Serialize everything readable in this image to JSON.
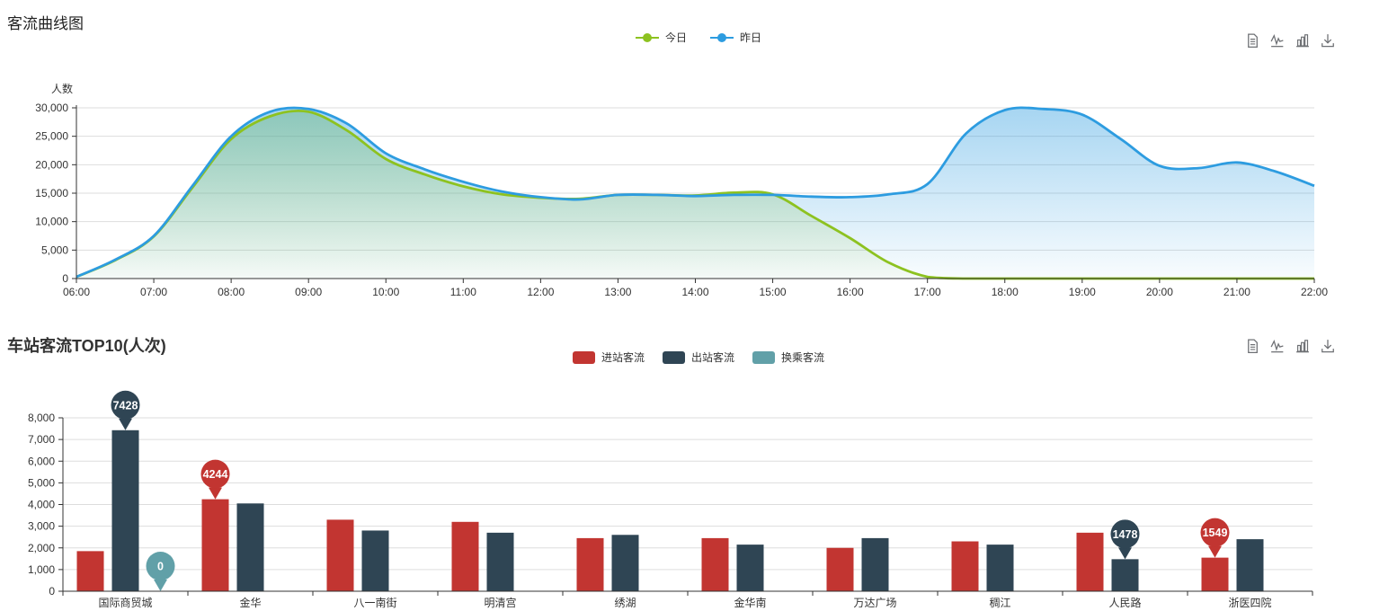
{
  "palette": {
    "red": "#c23531",
    "dark_navy": "#2f4554",
    "teal": "#61a0a8",
    "green": "#8dc220",
    "blue": "#2d9ce0",
    "axis": "#333333",
    "grid": "#dddddd",
    "icon": "#6e7074"
  },
  "toolbox": {
    "icons": [
      {
        "name": "data-view"
      },
      {
        "name": "line-chart"
      },
      {
        "name": "bar-chart"
      },
      {
        "name": "download"
      }
    ]
  },
  "chart_data": [
    {
      "type": "area",
      "title": "客流曲线图",
      "ylabel": "人数",
      "xlabel": "",
      "ylim": [
        0,
        30000
      ],
      "ytick_step": 5000,
      "y_ticks": [
        "0",
        "5,000",
        "10,000",
        "15,000",
        "20,000",
        "25,000",
        "30,000"
      ],
      "x_ticks": [
        "06:00",
        "07:00",
        "08:00",
        "09:00",
        "10:00",
        "11:00",
        "12:00",
        "13:00",
        "14:00",
        "15:00",
        "16:00",
        "17:00",
        "18:00",
        "19:00",
        "20:00",
        "21:00",
        "22:00"
      ],
      "x_hours": [
        6,
        6.5,
        7,
        7.5,
        8,
        8.5,
        9,
        9.5,
        10,
        10.5,
        11,
        11.5,
        12,
        12.5,
        13,
        13.5,
        14,
        14.5,
        15,
        15.5,
        16,
        16.5,
        17,
        17.5,
        18,
        18.5,
        19,
        19.5,
        20,
        20.5,
        21,
        21.5,
        22
      ],
      "legend_position": "top-center",
      "grid": true,
      "series": [
        {
          "name": "今日",
          "color": "#8dc220",
          "values": [
            300,
            3200,
            7400,
            16000,
            24500,
            28500,
            29300,
            26000,
            21000,
            18300,
            16200,
            14800,
            14200,
            14000,
            14700,
            14700,
            14600,
            15100,
            14800,
            11000,
            7100,
            2800,
            300,
            0,
            0,
            0,
            0,
            0,
            0,
            0,
            0,
            0,
            0
          ]
        },
        {
          "name": "昨日",
          "color": "#2d9ce0",
          "values": [
            300,
            3300,
            7500,
            16300,
            25000,
            29300,
            29800,
            27200,
            22000,
            19200,
            17000,
            15300,
            14300,
            13900,
            14700,
            14700,
            14500,
            14700,
            14700,
            14400,
            14300,
            14800,
            16600,
            25500,
            29600,
            29800,
            28800,
            24500,
            19800,
            19400,
            20400,
            18800,
            16300
          ]
        }
      ]
    },
    {
      "type": "bar",
      "title": "车站客流TOP10(人次)",
      "ylabel": "",
      "xlabel": "",
      "ylim": [
        0,
        8000
      ],
      "ytick_step": 1000,
      "y_ticks": [
        "0",
        "1,000",
        "2,000",
        "3,000",
        "4,000",
        "5,000",
        "6,000",
        "7,000",
        "8,000"
      ],
      "categories": [
        "国际商贸城",
        "金华",
        "八一南街",
        "明清宫",
        "绣湖",
        "金华南",
        "万达广场",
        "稠江",
        "人民路",
        "浙医四院"
      ],
      "legend_position": "top-center",
      "grid": true,
      "series": [
        {
          "name": "进站客流",
          "color": "#c23531",
          "values": [
            1850,
            4244,
            3300,
            3200,
            2450,
            2450,
            2000,
            2300,
            2700,
            1549
          ]
        },
        {
          "name": "出站客流",
          "color": "#2f4554",
          "values": [
            7428,
            4050,
            2800,
            2700,
            2600,
            2150,
            2450,
            2150,
            1478,
            2400
          ]
        },
        {
          "name": "换乘客流",
          "color": "#61a0a8",
          "values": [
            0,
            0,
            0,
            0,
            0,
            0,
            0,
            0,
            0,
            0
          ]
        }
      ],
      "markpoints": [
        {
          "series": "出站客流",
          "category": "国际商贸城",
          "value": "7428"
        },
        {
          "series": "换乘客流",
          "category": "国际商贸城",
          "value": "0"
        },
        {
          "series": "进站客流",
          "category": "金华",
          "value": "4244"
        },
        {
          "series": "出站客流",
          "category": "人民路",
          "value": "1478"
        },
        {
          "series": "进站客流",
          "category": "浙医四院",
          "value": "1549"
        }
      ]
    }
  ]
}
